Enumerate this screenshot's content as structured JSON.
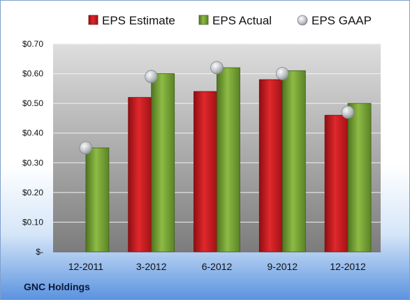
{
  "company": "GNC Holdings",
  "colors": {
    "estimate": "#c0171c",
    "actual": "#6e9a2b",
    "gaap": "#c8ccd2"
  },
  "chart_data": {
    "type": "bar",
    "categories": [
      "12-2011",
      "3-2012",
      "6-2012",
      "9-2012",
      "12-2012"
    ],
    "series": [
      {
        "name": "EPS Estimate",
        "values": [
          null,
          0.52,
          0.54,
          0.58,
          0.46
        ]
      },
      {
        "name": "EPS Actual",
        "values": [
          0.35,
          0.6,
          0.62,
          0.61,
          0.5
        ]
      },
      {
        "name": "EPS GAAP",
        "values": [
          0.35,
          0.59,
          0.62,
          0.6,
          0.47
        ],
        "marker": "circle"
      }
    ],
    "ylim": [
      0,
      0.7
    ],
    "yticks": [
      0,
      0.1,
      0.2,
      0.3,
      0.4,
      0.5,
      0.6,
      0.7
    ],
    "ytick_labels": [
      "$-",
      "$0.10",
      "$0.20",
      "$0.30",
      "$0.40",
      "$0.50",
      "$0.60",
      "$0.70"
    ],
    "legend_position": "top",
    "grid": true
  }
}
